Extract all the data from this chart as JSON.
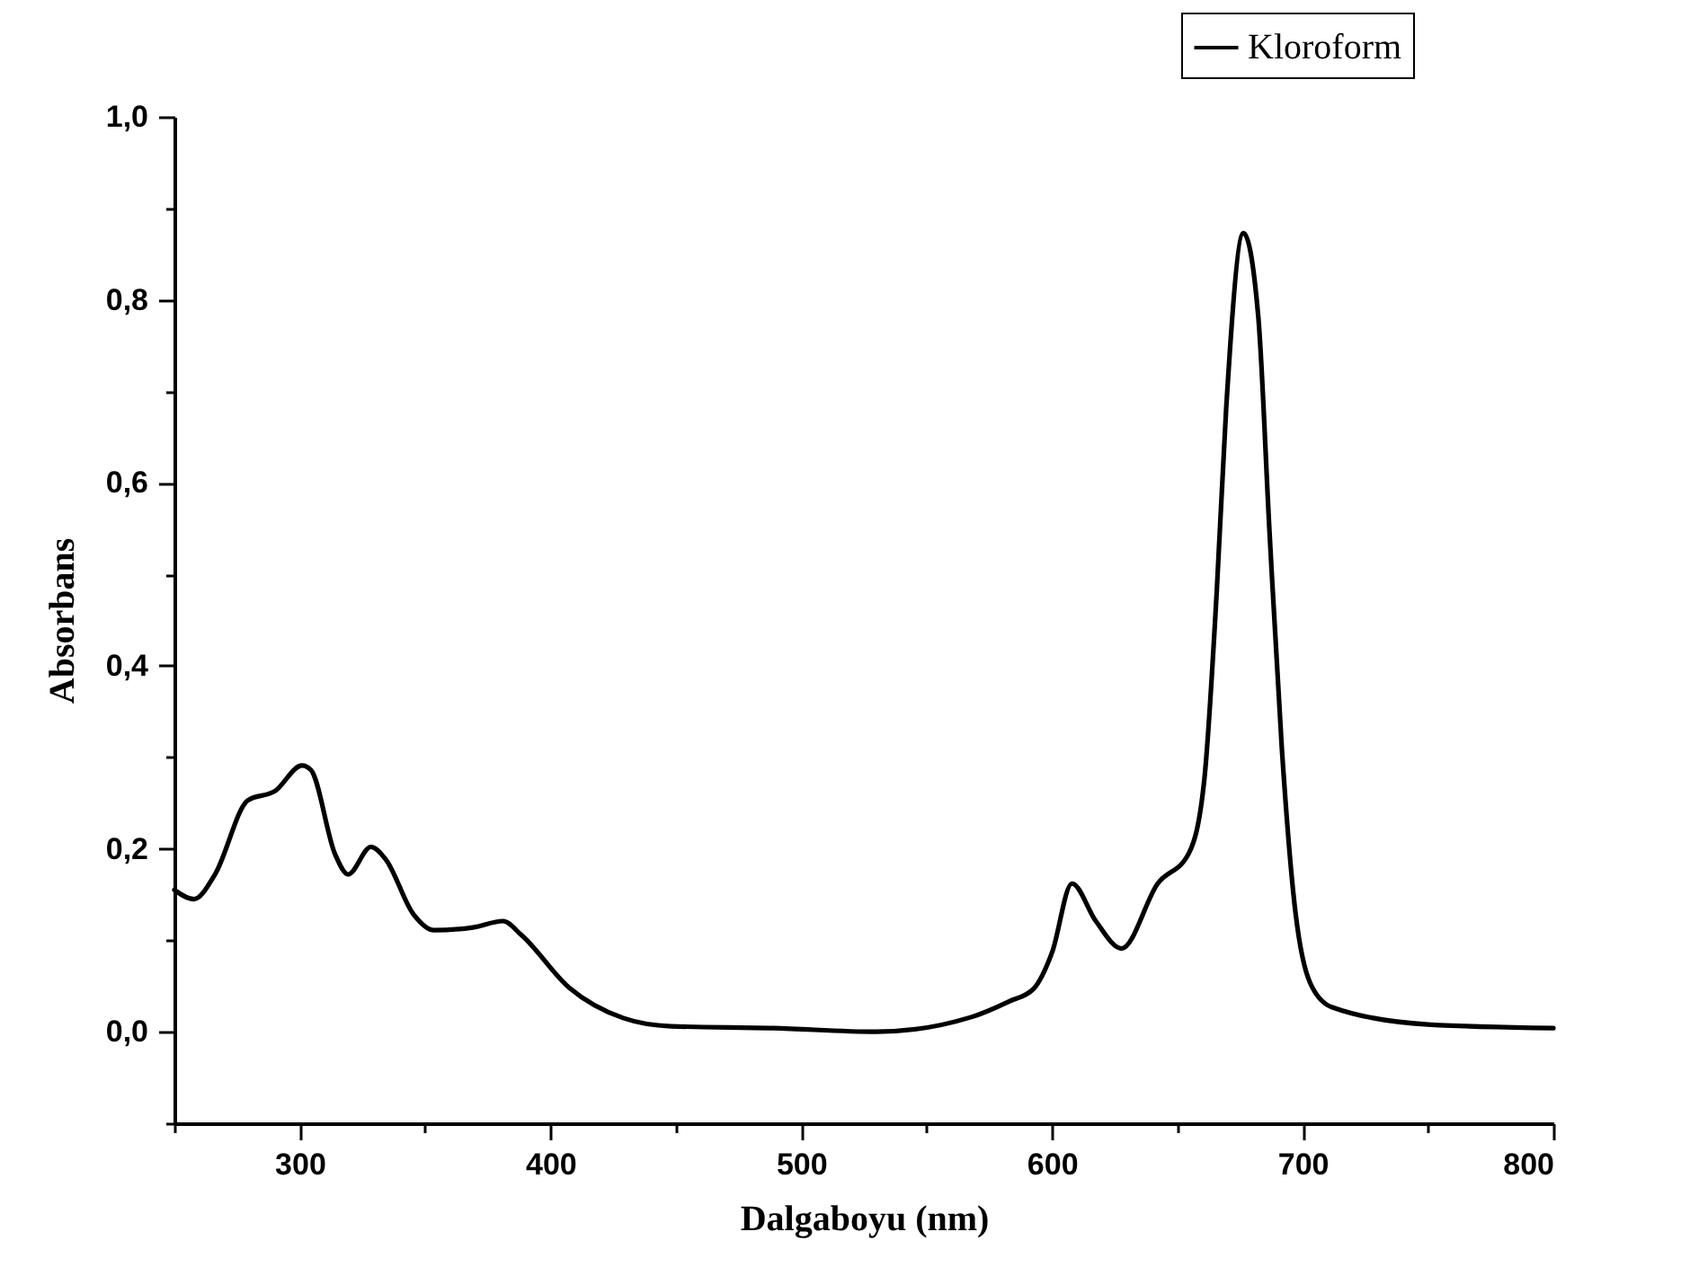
{
  "chart_data": {
    "type": "line",
    "xlabel": "Dalgaboyu (nm)",
    "ylabel": "Absorbans",
    "x": [
      250,
      257.8,
      266.2,
      279.3,
      290.1,
      300.9,
      304.5,
      314.1,
      319.3,
      328.4,
      334.4,
      345.2,
      353.6,
      369.1,
      381.1,
      388.3,
      407.5,
      429,
      448.1,
      488.9,
      530,
      567.8,
      582.8,
      592.7,
      600.1,
      608,
      617.5,
      627.8,
      642.2,
      654.6,
      660.8,
      665.7,
      669.5,
      676.4,
      682.3,
      686.8,
      691.7,
      696.7,
      702.9,
      711.6,
      750,
      800
    ],
    "series": [
      {
        "name": "Kloroform",
        "color": "#000000",
        "values": [
          0.155,
          0.145,
          0.172,
          0.253,
          0.263,
          0.291,
          0.286,
          0.194,
          0.172,
          0.202,
          0.188,
          0.129,
          0.111,
          0.114,
          0.121,
          0.106,
          0.048,
          0.015,
          0.006,
          0.004,
          0.0,
          0.016,
          0.033,
          0.047,
          0.087,
          0.162,
          0.121,
          0.091,
          0.162,
          0.195,
          0.276,
          0.479,
          0.681,
          0.873,
          0.782,
          0.546,
          0.31,
          0.141,
          0.054,
          0.027,
          0.008,
          0.004
        ]
      }
    ],
    "xlim": [
      250,
      800
    ],
    "ylim": [
      -0.1,
      1.0
    ],
    "xticks": [
      {
        "value": 250,
        "label": null
      },
      300,
      {
        "value": 350,
        "label": null
      },
      400,
      {
        "value": 450,
        "label": null
      },
      500,
      {
        "value": 550,
        "label": null
      },
      600,
      {
        "value": 650,
        "label": null
      },
      700,
      {
        "value": 750,
        "label": null
      },
      800
    ],
    "yticks": [
      {
        "value": -0.1,
        "label": null
      },
      {
        "value": 0,
        "label": "0,0"
      },
      {
        "value": 0.1,
        "label": null
      },
      {
        "value": 0.2,
        "label": "0,2"
      },
      {
        "value": 0.3,
        "label": null
      },
      {
        "value": 0.4,
        "label": "0,4"
      },
      {
        "value": 0.5,
        "label": null
      },
      {
        "value": 0.6,
        "label": "0,6"
      },
      {
        "value": 0.7,
        "label": null
      },
      {
        "value": 0.8,
        "label": "0,8"
      },
      {
        "value": 0.9,
        "label": null
      },
      {
        "value": 1.0,
        "label": "1,0"
      }
    ],
    "legend": "top right",
    "grid": false,
    "line_style": "solid",
    "marker": "none"
  }
}
